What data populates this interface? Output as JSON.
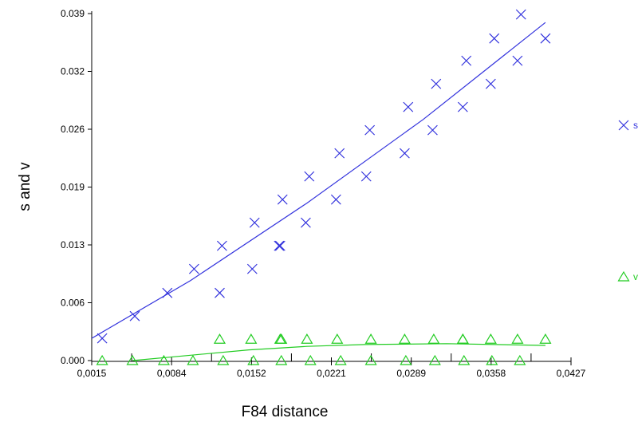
{
  "chart_data": {
    "type": "scatter",
    "xlabel": "F84 distance",
    "ylabel": "s and v",
    "xlim": [
      0.0015,
      0.0427
    ],
    "ylim": [
      0.0,
      0.039
    ],
    "x_ticks": [
      "0,0015",
      "0,0084",
      "0,0152",
      "0,0221",
      "0,0289",
      "0,0358",
      "0,0427"
    ],
    "y_ticks": [
      "0.000",
      "0.006",
      "0.013",
      "0.019",
      "0.026",
      "0.032",
      "0.039"
    ],
    "legend_position": "right",
    "series": [
      {
        "name": "s",
        "marker": "x",
        "color": "#3333dd",
        "points": [
          [
            0.0024,
            0.0025
          ],
          [
            0.0052,
            0.005
          ],
          [
            0.008,
            0.0076
          ],
          [
            0.0103,
            0.0103
          ],
          [
            0.0125,
            0.0076
          ],
          [
            0.0127,
            0.0129
          ],
          [
            0.0153,
            0.0103
          ],
          [
            0.0155,
            0.0155
          ],
          [
            0.0176,
            0.0129
          ],
          [
            0.0177,
            0.0129
          ],
          [
            0.0179,
            0.0181
          ],
          [
            0.0199,
            0.0155
          ],
          [
            0.0202,
            0.0207
          ],
          [
            0.0225,
            0.0181
          ],
          [
            0.0228,
            0.0233
          ],
          [
            0.0251,
            0.0207
          ],
          [
            0.0254,
            0.0259
          ],
          [
            0.0284,
            0.0233
          ],
          [
            0.0287,
            0.0285
          ],
          [
            0.0308,
            0.0259
          ],
          [
            0.0311,
            0.0311
          ],
          [
            0.0334,
            0.0285
          ],
          [
            0.0337,
            0.0337
          ],
          [
            0.0358,
            0.0311
          ],
          [
            0.0361,
            0.0362
          ],
          [
            0.0381,
            0.0337
          ],
          [
            0.0384,
            0.0389
          ],
          [
            0.0405,
            0.0362
          ]
        ],
        "trend": [
          [
            0.0015,
            0.0025
          ],
          [
            0.01,
            0.009
          ],
          [
            0.02,
            0.0177
          ],
          [
            0.03,
            0.0271
          ],
          [
            0.0405,
            0.038
          ]
        ]
      },
      {
        "name": "v",
        "marker": "triangle",
        "color": "#22cc22",
        "points": [
          [
            0.0024,
            0.0
          ],
          [
            0.005,
            0.0
          ],
          [
            0.0077,
            0.0
          ],
          [
            0.0102,
            0.0
          ],
          [
            0.0125,
            0.0024
          ],
          [
            0.0128,
            0.0
          ],
          [
            0.0152,
            0.0024
          ],
          [
            0.0154,
            0.0
          ],
          [
            0.0177,
            0.0024
          ],
          [
            0.0178,
            0.0
          ],
          [
            0.0178,
            0.0024
          ],
          [
            0.02,
            0.0024
          ],
          [
            0.0203,
            0.0
          ],
          [
            0.0226,
            0.0024
          ],
          [
            0.0229,
            0.0
          ],
          [
            0.0255,
            0.0024
          ],
          [
            0.0255,
            0.0
          ],
          [
            0.0284,
            0.0024
          ],
          [
            0.0285,
            0.0
          ],
          [
            0.0309,
            0.0024
          ],
          [
            0.031,
            0.0
          ],
          [
            0.0334,
            0.0024
          ],
          [
            0.0334,
            0.0024
          ],
          [
            0.0335,
            0.0
          ],
          [
            0.0358,
            0.0024
          ],
          [
            0.0359,
            0.0
          ],
          [
            0.0381,
            0.0024
          ],
          [
            0.0383,
            0.0
          ],
          [
            0.0405,
            0.0024
          ]
        ],
        "trend": [
          [
            0.005,
            0.0
          ],
          [
            0.01,
            0.0006
          ],
          [
            0.015,
            0.0012
          ],
          [
            0.02,
            0.0016
          ],
          [
            0.025,
            0.0018
          ],
          [
            0.032,
            0.0019
          ],
          [
            0.0405,
            0.0017
          ]
        ]
      }
    ]
  }
}
